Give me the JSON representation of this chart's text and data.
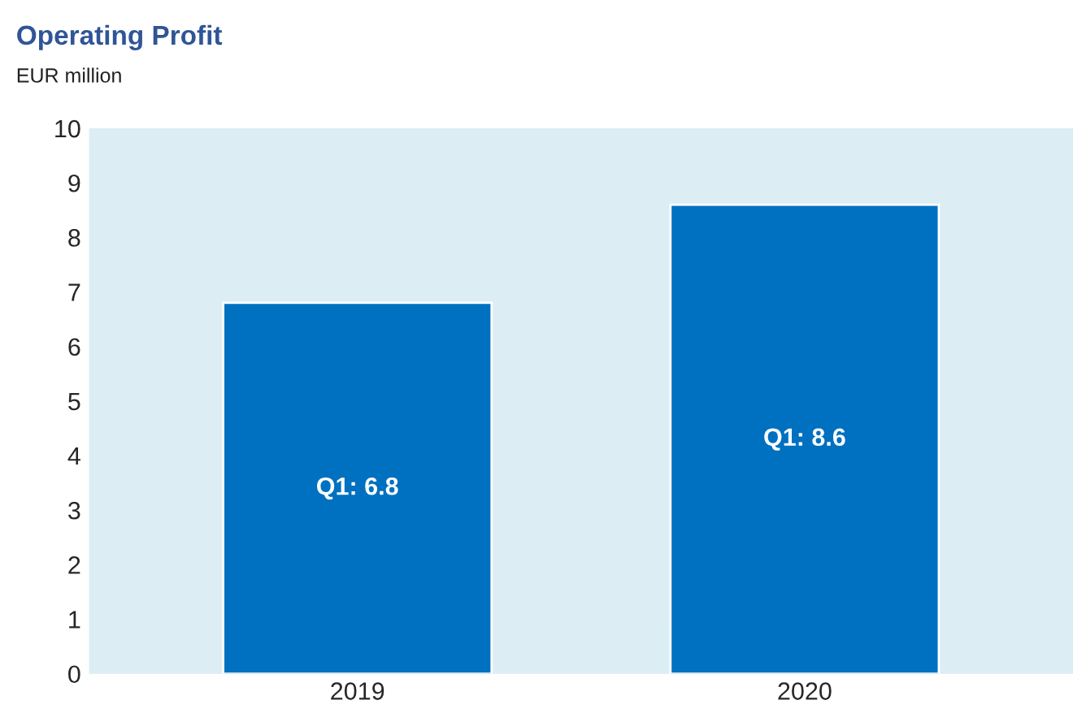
{
  "chart_data": {
    "type": "bar",
    "title": "Operating Profit",
    "subtitle": "EUR million",
    "categories": [
      "2019",
      "2020"
    ],
    "values": [
      6.8,
      8.6
    ],
    "value_labels": [
      "Q1: 6.8",
      "Q1: 8.6"
    ],
    "color": "#0070c0",
    "ylim": [
      0,
      10
    ],
    "yticks": [
      0,
      1,
      2,
      3,
      4,
      5,
      6,
      7,
      8,
      9,
      10
    ],
    "grid": false,
    "legend": false
  }
}
